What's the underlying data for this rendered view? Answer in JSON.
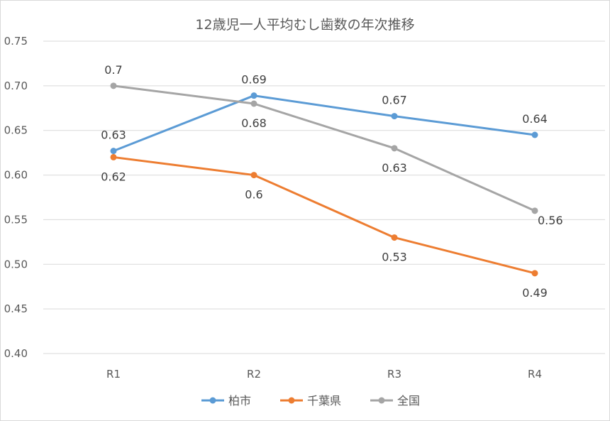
{
  "chart_data": {
    "type": "line",
    "title": "12歳児一人平均むし歯数の年次推移",
    "categories": [
      "R1",
      "R2",
      "R3",
      "R4"
    ],
    "ylim": [
      0.4,
      0.75
    ],
    "yticks": [
      "0.40",
      "0.45",
      "0.50",
      "0.55",
      "0.60",
      "0.65",
      "0.70",
      "0.75"
    ],
    "grid": true,
    "legend": "bottom",
    "series": [
      {
        "name": "柏市",
        "color": "#5b9bd5",
        "values": [
          0.627,
          0.689,
          0.666,
          0.645
        ],
        "labels": [
          "0.63",
          "0.69",
          "0.67",
          "0.64"
        ],
        "label_pos": [
          "above",
          "above",
          "above",
          "above"
        ]
      },
      {
        "name": "千葉県",
        "color": "#ed7d31",
        "values": [
          0.62,
          0.6,
          0.53,
          0.49
        ],
        "labels": [
          "0.62",
          "0.6",
          "0.53",
          "0.49"
        ],
        "label_pos": [
          "below",
          "below",
          "below",
          "below"
        ]
      },
      {
        "name": "全国",
        "color": "#a5a5a5",
        "values": [
          0.7,
          0.68,
          0.63,
          0.56
        ],
        "labels": [
          "0.7",
          "0.68",
          "0.63",
          "0.56"
        ],
        "label_pos": [
          "above",
          "below",
          "below",
          "right"
        ]
      }
    ]
  }
}
